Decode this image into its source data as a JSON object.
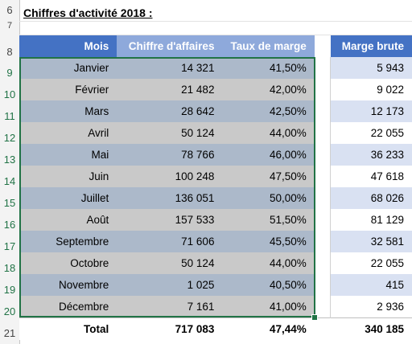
{
  "sheet": {
    "title": "Chiffres d'activité 2018 :",
    "row_numbers": [
      "6",
      "7",
      "8",
      "9",
      "10",
      "11",
      "12",
      "13",
      "14",
      "15",
      "16",
      "17",
      "18",
      "19",
      "20",
      "21"
    ],
    "headers": {
      "mois": "Mois",
      "chiffre": "Chiffre d'affaires",
      "taux": "Taux de marge",
      "marge": "Marge brute"
    },
    "rows": [
      {
        "mois": "Janvier",
        "chiffre": "14 321",
        "taux": "41,50%",
        "marge": "5 943"
      },
      {
        "mois": "Février",
        "chiffre": "21 482",
        "taux": "42,00%",
        "marge": "9 022"
      },
      {
        "mois": "Mars",
        "chiffre": "28 642",
        "taux": "42,50%",
        "marge": "12 173"
      },
      {
        "mois": "Avril",
        "chiffre": "50 124",
        "taux": "44,00%",
        "marge": "22 055"
      },
      {
        "mois": "Mai",
        "chiffre": "78 766",
        "taux": "46,00%",
        "marge": "36 233"
      },
      {
        "mois": "Juin",
        "chiffre": "100 248",
        "taux": "47,50%",
        "marge": "47 618"
      },
      {
        "mois": "Juillet",
        "chiffre": "136 051",
        "taux": "50,00%",
        "marge": "68 026"
      },
      {
        "mois": "Août",
        "chiffre": "157 533",
        "taux": "51,50%",
        "marge": "81 129"
      },
      {
        "mois": "Septembre",
        "chiffre": "71 606",
        "taux": "45,50%",
        "marge": "32 581"
      },
      {
        "mois": "Octobre",
        "chiffre": "50 124",
        "taux": "44,00%",
        "marge": "22 055"
      },
      {
        "mois": "Novembre",
        "chiffre": "1 025",
        "taux": "40,50%",
        "marge": "415"
      },
      {
        "mois": "Décembre",
        "chiffre": "7 161",
        "taux": "41,00%",
        "marge": "2 936"
      }
    ],
    "total": {
      "mois": "Total",
      "chiffre": "717 083",
      "taux": "47,44%",
      "marge": "340 185"
    }
  },
  "colors": {
    "header_dark": "#4472c4",
    "header_light": "#8ea9db",
    "row_odd": "#acb9ca",
    "row_even": "#c9c9c9",
    "marge_odd": "#d9e1f2",
    "selection": "#217346"
  }
}
